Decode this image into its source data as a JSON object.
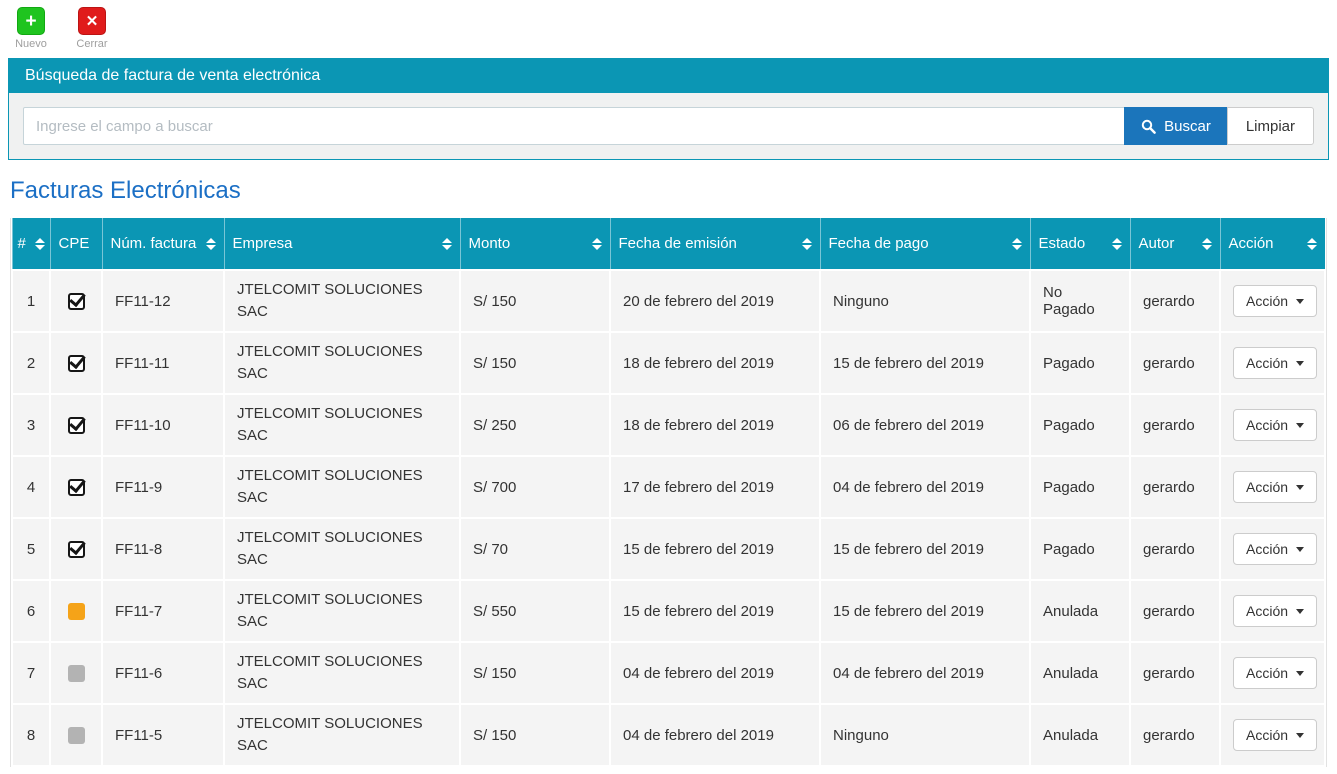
{
  "toolbar": {
    "nuevo_label": "Nuevo",
    "nuevo_glyph": "+",
    "cerrar_label": "Cerrar",
    "cerrar_glyph": "✕"
  },
  "search_panel": {
    "title": "Búsqueda de factura de venta electrónica",
    "input_placeholder": "Ingrese el campo a buscar",
    "input_value": "",
    "buscar_label": "Buscar",
    "limpiar_label": "Limpiar"
  },
  "page_title": "Facturas Electrónicas",
  "table": {
    "action_label": "Acción",
    "columns": [
      {
        "key": "num",
        "label": "#",
        "sortable": true
      },
      {
        "key": "cpe",
        "label": "CPE",
        "sortable": false
      },
      {
        "key": "factura",
        "label": "Núm. factura",
        "sortable": true
      },
      {
        "key": "empresa",
        "label": "Empresa",
        "sortable": true
      },
      {
        "key": "monto",
        "label": "Monto",
        "sortable": true
      },
      {
        "key": "emision",
        "label": "Fecha de emisión",
        "sortable": true
      },
      {
        "key": "pago",
        "label": "Fecha de pago",
        "sortable": true
      },
      {
        "key": "estado",
        "label": "Estado",
        "sortable": true
      },
      {
        "key": "autor",
        "label": "Autor",
        "sortable": true
      },
      {
        "key": "accion",
        "label": "Acción",
        "sortable": true
      }
    ],
    "rows": [
      {
        "n": "1",
        "cpe": "checked",
        "factura": "FF11-12",
        "empresa": "JTELCOMIT SOLUCIONES SAC",
        "monto": "S/ 150",
        "emision": "20 de febrero del 2019",
        "pago": "Ninguno",
        "estado": "No Pagado",
        "autor": "gerardo"
      },
      {
        "n": "2",
        "cpe": "checked",
        "factura": "FF11-11",
        "empresa": "JTELCOMIT SOLUCIONES SAC",
        "monto": "S/ 150",
        "emision": "18 de febrero del 2019",
        "pago": "15 de febrero del 2019",
        "estado": "Pagado",
        "autor": "gerardo"
      },
      {
        "n": "3",
        "cpe": "checked",
        "factura": "FF11-10",
        "empresa": "JTELCOMIT SOLUCIONES SAC",
        "monto": "S/ 250",
        "emision": "18 de febrero del 2019",
        "pago": "06 de febrero del 2019",
        "estado": "Pagado",
        "autor": "gerardo"
      },
      {
        "n": "4",
        "cpe": "checked",
        "factura": "FF11-9",
        "empresa": "JTELCOMIT SOLUCIONES SAC",
        "monto": "S/ 700",
        "emision": "17 de febrero del 2019",
        "pago": "04 de febrero del 2019",
        "estado": "Pagado",
        "autor": "gerardo"
      },
      {
        "n": "5",
        "cpe": "checked",
        "factura": "FF11-8",
        "empresa": "JTELCOMIT SOLUCIONES SAC",
        "monto": "S/ 70",
        "emision": "15 de febrero del 2019",
        "pago": "15 de febrero del 2019",
        "estado": "Pagado",
        "autor": "gerardo"
      },
      {
        "n": "6",
        "cpe": "orange",
        "factura": "FF11-7",
        "empresa": "JTELCOMIT SOLUCIONES SAC",
        "monto": "S/ 550",
        "emision": "15 de febrero del 2019",
        "pago": "15 de febrero del 2019",
        "estado": "Anulada",
        "autor": "gerardo"
      },
      {
        "n": "7",
        "cpe": "gray",
        "factura": "FF11-6",
        "empresa": "JTELCOMIT SOLUCIONES SAC",
        "monto": "S/ 150",
        "emision": "04 de febrero del 2019",
        "pago": "04 de febrero del 2019",
        "estado": "Anulada",
        "autor": "gerardo"
      },
      {
        "n": "8",
        "cpe": "gray",
        "factura": "FF11-5",
        "empresa": "JTELCOMIT SOLUCIONES SAC",
        "monto": "S/ 150",
        "emision": "04 de febrero del 2019",
        "pago": "Ninguno",
        "estado": "Anulada",
        "autor": "gerardo"
      }
    ]
  },
  "colors": {
    "teal": "#0b96b4",
    "buscar_blue": "#1b75bb",
    "title_blue": "#1b6fc5",
    "nuevo_green": "#1fc41f",
    "cerrar_red": "#e01b1b",
    "orange": "#f5a318",
    "gray": "#b3b3b3",
    "row_bg": "#f4f4f4"
  }
}
